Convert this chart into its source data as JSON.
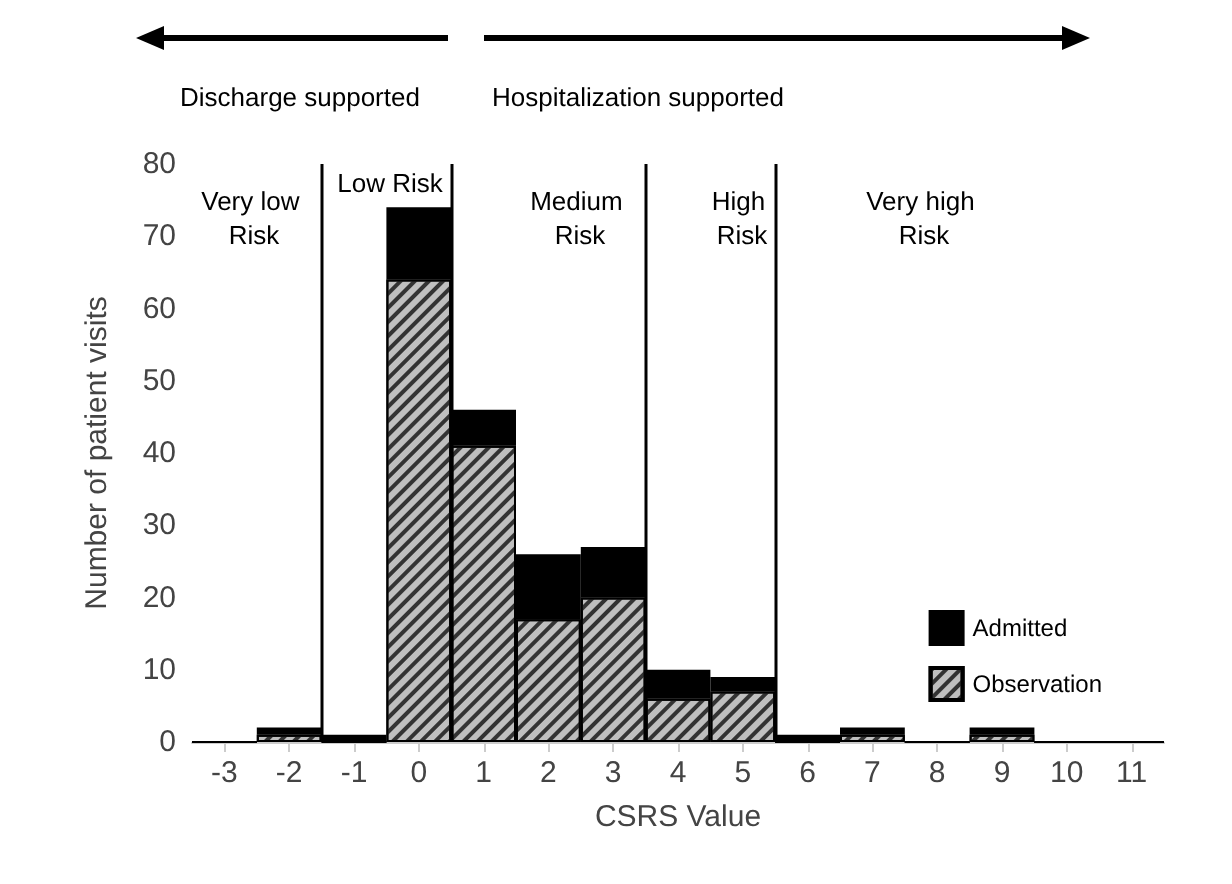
{
  "chart_data": {
    "type": "bar",
    "stacked": true,
    "xlabel": "CSRS Value",
    "ylabel": "Number of patient visits",
    "x": [
      -3,
      -2,
      -1,
      0,
      1,
      2,
      3,
      4,
      5,
      6,
      7,
      8,
      9,
      10,
      11
    ],
    "series": [
      {
        "name": "Observation",
        "color": "#bfbfbf",
        "values": [
          0,
          1,
          0,
          64,
          41,
          17,
          20,
          6,
          7,
          0,
          1,
          0,
          1,
          0,
          0
        ]
      },
      {
        "name": "Admitted",
        "color": "#000000",
        "values": [
          0,
          1,
          1,
          10,
          5,
          9,
          7,
          4,
          2,
          1,
          1,
          0,
          1,
          0,
          0
        ]
      }
    ],
    "xlim": [
      -3.5,
      11.5
    ],
    "xticks": [
      -3,
      -2,
      -1,
      0,
      1,
      2,
      3,
      4,
      5,
      6,
      7,
      8,
      9,
      10,
      11
    ],
    "ylim": [
      0,
      80
    ],
    "yticks": [
      0,
      10,
      20,
      30,
      40,
      50,
      60,
      70,
      80
    ],
    "grid": false,
    "legend": "right",
    "ref_lines": [
      {
        "axis": "x",
        "value": -1.5,
        "color": "#000000"
      },
      {
        "axis": "x",
        "value": 0.5,
        "color": "#000000"
      },
      {
        "axis": "x",
        "value": 3.5,
        "color": "#000000"
      },
      {
        "axis": "x",
        "value": 5.5,
        "color": "#000000"
      }
    ],
    "annotations": [
      "Discharge supported",
      "Hospitalization supported",
      "Very low Risk",
      "Low Risk",
      "Medium Risk",
      "High Risk",
      "Very high Risk"
    ]
  }
}
